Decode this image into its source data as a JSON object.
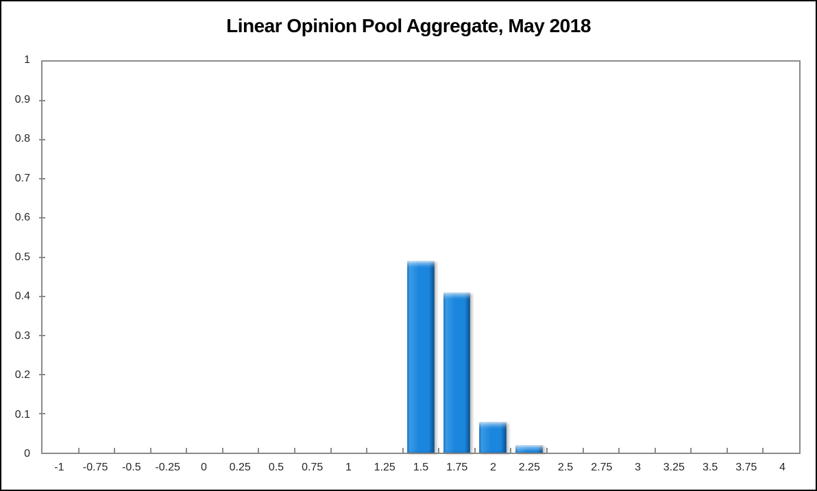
{
  "chart_data": {
    "type": "bar",
    "title": "Linear Opinion Pool Aggregate, May 2018",
    "categories": [
      "-1",
      "-0.75",
      "-0.5",
      "-0.25",
      "0",
      "0.25",
      "0.5",
      "0.75",
      "1",
      "1.25",
      "1.5",
      "1.75",
      "2",
      "2.25",
      "2.5",
      "2.75",
      "3",
      "3.25",
      "3.5",
      "3.75",
      "4"
    ],
    "values": [
      0,
      0,
      0,
      0,
      0,
      0,
      0,
      0,
      0,
      0,
      0.49,
      0.41,
      0.078,
      0.02,
      0,
      0,
      0,
      0,
      0,
      0,
      0
    ],
    "xlabel": "",
    "ylabel": "",
    "ylim": [
      0,
      1
    ],
    "yticks": [
      {
        "v": 0,
        "label": "0"
      },
      {
        "v": 0.1,
        "label": "0.1"
      },
      {
        "v": 0.2,
        "label": "0.2"
      },
      {
        "v": 0.3,
        "label": "0.3"
      },
      {
        "v": 0.4,
        "label": "0.4"
      },
      {
        "v": 0.5,
        "label": "0.5"
      },
      {
        "v": 0.6,
        "label": "0.6"
      },
      {
        "v": 0.7,
        "label": "0.7"
      },
      {
        "v": 0.8,
        "label": "0.8"
      },
      {
        "v": 0.9,
        "label": "0.9"
      },
      {
        "v": 1,
        "label": "1"
      }
    ],
    "grid": false,
    "legend": null,
    "colors": {
      "bar_fill": "#1B86DE",
      "bar_edge_dark": "#0D67B2",
      "bar_bevel_light": "#45A3EC",
      "axis_border": "#8A8A8A",
      "label_text": "#262626",
      "title_text": "#000000",
      "frame_border": "#000000",
      "background": "#FFFFFF"
    }
  }
}
